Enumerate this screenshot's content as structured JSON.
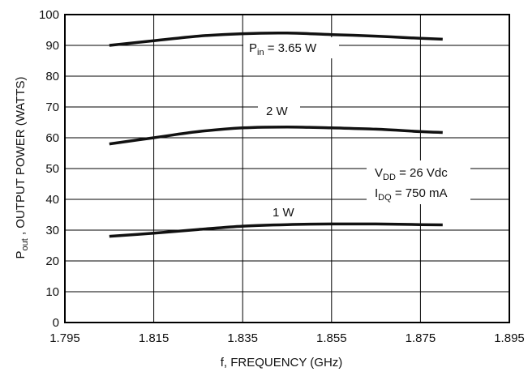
{
  "chart_data": {
    "type": "line",
    "xlabel": "f, FREQUENCY (GHz)",
    "ylabel": {
      "main": "P",
      "sub": "out",
      "rest": " , OUTPUT POWER (WATTS)"
    },
    "xlim": [
      1.795,
      1.895
    ],
    "ylim": [
      0,
      100
    ],
    "x_ticks": [
      "1.795",
      "1.815",
      "1.835",
      "1.855",
      "1.875",
      "1.895"
    ],
    "y_ticks": [
      "0",
      "10",
      "20",
      "30",
      "40",
      "50",
      "60",
      "70",
      "80",
      "90",
      "100"
    ],
    "grid": true,
    "series": [
      {
        "name": "Pin = 3.65 W",
        "x": [
          1.805,
          1.815,
          1.825,
          1.835,
          1.845,
          1.855,
          1.865,
          1.875,
          1.88
        ],
        "y": [
          90,
          91.5,
          93,
          93.8,
          94,
          93.5,
          93,
          92.3,
          92
        ]
      },
      {
        "name": "2 W",
        "x": [
          1.805,
          1.815,
          1.825,
          1.835,
          1.845,
          1.855,
          1.865,
          1.875,
          1.88
        ],
        "y": [
          58,
          60,
          62,
          63.2,
          63.5,
          63.2,
          62.8,
          62,
          61.7
        ]
      },
      {
        "name": "1 W",
        "x": [
          1.805,
          1.815,
          1.825,
          1.835,
          1.845,
          1.855,
          1.865,
          1.875,
          1.88
        ],
        "y": [
          28,
          29,
          30.2,
          31.3,
          31.8,
          32,
          32,
          31.8,
          31.7
        ]
      }
    ],
    "annotations": {
      "pin": {
        "main": "P",
        "sub": "in",
        "rest": " = 3.65 W"
      },
      "w2": "2 W",
      "w1": "1 W",
      "vdd": {
        "main": "V",
        "sub": "DD",
        "rest": " = 26 Vdc"
      },
      "idq": {
        "main": "I",
        "sub": "DQ",
        "rest": " = 750 mA"
      }
    }
  }
}
